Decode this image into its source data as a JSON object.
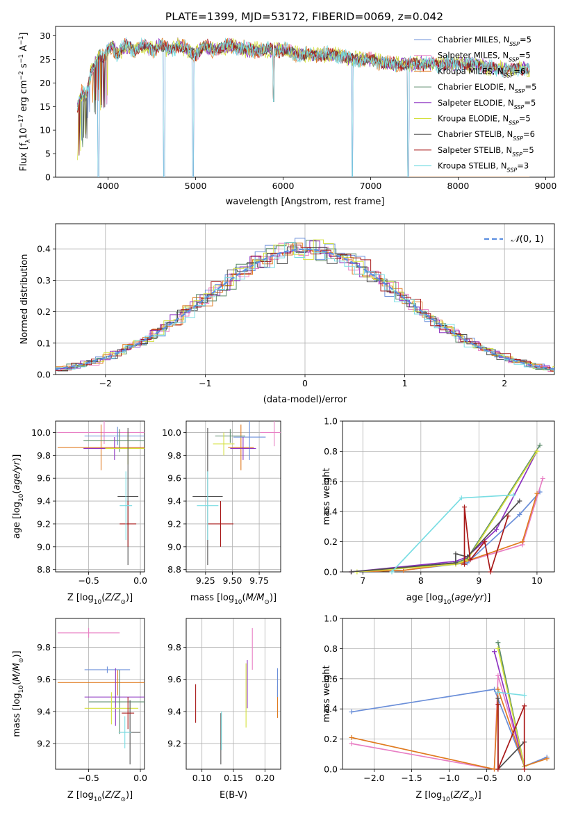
{
  "figure_title": "PLATE=1399, MJD=53172, FIBERID=0069, z=0.042",
  "models": [
    {
      "name": "Chabrier MILES",
      "nssp": "5",
      "color": "#6b8fd9"
    },
    {
      "name": "Salpeter MILES",
      "nssp": "5",
      "color": "#e87fc4"
    },
    {
      "name": "Kroupa MILES",
      "nssp": "6",
      "color": "#e07b20"
    },
    {
      "name": "Chabrier ELODIE",
      "nssp": "5",
      "color": "#5a8a6a"
    },
    {
      "name": "Salpeter ELODIE",
      "nssp": "5",
      "color": "#8e34c2"
    },
    {
      "name": "Kroupa ELODIE",
      "nssp": "5",
      "color": "#d4e03c"
    },
    {
      "name": "Chabrier STELIB",
      "nssp": "6",
      "color": "#505050"
    },
    {
      "name": "Salpeter STELIB",
      "nssp": "5",
      "color": "#a81818"
    },
    {
      "name": "Kroupa STELIB",
      "nssp": "3",
      "color": "#79dde3"
    }
  ],
  "chart_data": [
    {
      "id": "spectrum",
      "type": "line",
      "xlabel": "wavelength [Angstrom, rest frame]",
      "ylabel_prefix": "Flux [f",
      "xlim": [
        3400,
        9100
      ],
      "ylim": [
        0,
        32
      ],
      "xticks": [
        4000,
        5000,
        6000,
        7000,
        8000,
        9000
      ],
      "yticks": [
        0,
        5,
        10,
        15,
        20,
        25,
        30
      ],
      "legend": "right",
      "points": [
        [
          3650,
          15
        ],
        [
          3700,
          18
        ],
        [
          3750,
          17
        ],
        [
          3800,
          22
        ],
        [
          3850,
          24
        ],
        [
          3900,
          26
        ],
        [
          3950,
          25
        ],
        [
          4000,
          27
        ],
        [
          4050,
          28
        ],
        [
          4100,
          26
        ],
        [
          4200,
          28
        ],
        [
          4300,
          27
        ],
        [
          4400,
          28
        ],
        [
          4500,
          27
        ],
        [
          4600,
          28
        ],
        [
          4700,
          27
        ],
        [
          4800,
          28
        ],
        [
          4900,
          27
        ],
        [
          5000,
          26
        ],
        [
          5100,
          28
        ],
        [
          5200,
          27
        ],
        [
          5400,
          28
        ],
        [
          5600,
          27
        ],
        [
          5800,
          27
        ],
        [
          6000,
          27
        ],
        [
          6200,
          26
        ],
        [
          6400,
          26
        ],
        [
          6600,
          26
        ],
        [
          6800,
          25
        ],
        [
          7000,
          25
        ],
        [
          7200,
          24
        ],
        [
          7400,
          24
        ],
        [
          7600,
          24
        ],
        [
          7800,
          24
        ],
        [
          8000,
          24
        ],
        [
          8200,
          24
        ],
        [
          8400,
          23
        ],
        [
          8600,
          23
        ],
        [
          8800,
          23
        ]
      ],
      "dips": [
        [
          3890,
          0
        ],
        [
          4640,
          0
        ],
        [
          4970,
          0
        ],
        [
          5890,
          16
        ],
        [
          6790,
          0
        ],
        [
          7430,
          0
        ]
      ]
    },
    {
      "id": "residuals",
      "type": "histogram",
      "xlabel": "(data-model)/error",
      "ylabel": "Normed distribution",
      "xlim": [
        -2.5,
        2.5
      ],
      "ylim": [
        0,
        0.48
      ],
      "xticks": [
        -2,
        -1,
        0,
        1,
        2
      ],
      "yticks": [
        0.0,
        0.1,
        0.2,
        0.3,
        0.4
      ],
      "legend_label": "N(0,1)",
      "legend": "top-right"
    },
    {
      "id": "age_vs_Z",
      "type": "errorbar",
      "xlabel": "Z [log10(Z/Z⊙)]",
      "ylabel": "age [log10(age/yr)]",
      "xlim": [
        -0.82,
        0.04
      ],
      "ylim": [
        8.78,
        10.1
      ],
      "xticks": [
        -0.5,
        -0.0
      ],
      "xticklabels": [
        "−0.5",
        "0.0"
      ],
      "yticks": [
        8.8,
        9.0,
        9.2,
        9.4,
        9.6,
        9.8,
        10.0
      ],
      "points": [
        {
          "x": -0.35,
          "y": 10.0,
          "xerr": 0.45,
          "yerr": 0.1,
          "model": 1
        },
        {
          "x": -0.38,
          "y": 9.87,
          "xerr": 0.42,
          "yerr": 0.2,
          "model": 2
        },
        {
          "x": -0.22,
          "y": 9.97,
          "xerr": 0.32,
          "yerr": 0.08,
          "model": 0
        },
        {
          "x": -0.2,
          "y": 9.93,
          "xerr": 0.35,
          "yerr": 0.1,
          "model": 3
        },
        {
          "x": -0.25,
          "y": 9.86,
          "xerr": 0.3,
          "yerr": 0.1,
          "model": 4
        },
        {
          "x": -0.12,
          "y": 9.86,
          "xerr": 0.22,
          "yerr": 0.14,
          "model": 5
        },
        {
          "x": -0.12,
          "y": 9.44,
          "xerr": 0.1,
          "yerr": 0.6,
          "model": 6
        },
        {
          "x": -0.12,
          "y": 9.2,
          "xerr": 0.08,
          "yerr": 0.2,
          "model": 7
        },
        {
          "x": -0.14,
          "y": 9.36,
          "xerr": 0.06,
          "yerr": 0.3,
          "model": 8
        }
      ]
    },
    {
      "id": "age_vs_mass",
      "type": "errorbar",
      "xlabel": "mass [log10(M/M⊙)]",
      "ylabel": "",
      "xlim": [
        9.07,
        9.95
      ],
      "ylim": [
        8.78,
        10.1
      ],
      "xticks": [
        9.25,
        9.5,
        9.75
      ],
      "xticklabels": [
        "9.25",
        "9.50",
        "9.75"
      ],
      "yticks": [
        8.8,
        9.0,
        9.2,
        9.4,
        9.6,
        9.8,
        10.0
      ],
      "points": [
        {
          "x": 9.89,
          "y": 10.0,
          "xerr": 0.13,
          "yerr": 0.12,
          "model": 1
        },
        {
          "x": 9.58,
          "y": 9.87,
          "xerr": 0.12,
          "yerr": 0.2,
          "model": 2
        },
        {
          "x": 9.66,
          "y": 9.96,
          "xerr": 0.15,
          "yerr": 0.2,
          "model": 0
        },
        {
          "x": 9.48,
          "y": 9.97,
          "xerr": 0.14,
          "yerr": 0.06,
          "model": 3
        },
        {
          "x": 9.6,
          "y": 9.86,
          "xerr": 0.12,
          "yerr": 0.1,
          "model": 4
        },
        {
          "x": 9.42,
          "y": 9.9,
          "xerr": 0.1,
          "yerr": 0.1,
          "model": 5
        },
        {
          "x": 9.27,
          "y": 9.44,
          "xerr": 0.14,
          "yerr": 0.6,
          "model": 6
        },
        {
          "x": 9.39,
          "y": 9.2,
          "xerr": 0.12,
          "yerr": 0.2,
          "model": 7
        },
        {
          "x": 9.27,
          "y": 9.36,
          "xerr": 0.1,
          "yerr": 0.3,
          "model": 8
        }
      ]
    },
    {
      "id": "weight_vs_age",
      "type": "line",
      "xlabel": "age [log10(age/yr)]",
      "ylabel": "mass weight",
      "xlim": [
        6.65,
        10.3
      ],
      "ylim": [
        0,
        1.0
      ],
      "xticks": [
        7,
        8,
        9,
        10
      ],
      "yticks": [
        0.0,
        0.2,
        0.4,
        0.6,
        0.8,
        1.0
      ],
      "series": [
        {
          "model": 0,
          "points": [
            [
              6.8,
              0.0
            ],
            [
              7.7,
              0.01
            ],
            [
              8.8,
              0.06
            ],
            [
              9.7,
              0.38
            ],
            [
              10.05,
              0.53
            ]
          ]
        },
        {
          "model": 1,
          "points": [
            [
              6.8,
              0.0
            ],
            [
              7.7,
              0.01
            ],
            [
              8.7,
              0.06
            ],
            [
              9.75,
              0.18
            ],
            [
              10.1,
              0.62
            ]
          ]
        },
        {
          "model": 2,
          "points": [
            [
              6.8,
              0.0
            ],
            [
              7.7,
              0.01
            ],
            [
              8.7,
              0.06
            ],
            [
              9.75,
              0.2
            ],
            [
              10.0,
              0.52
            ]
          ]
        },
        {
          "model": 3,
          "points": [
            [
              6.8,
              0.0
            ],
            [
              8.6,
              0.06
            ],
            [
              8.8,
              0.09
            ],
            [
              10.05,
              0.84
            ]
          ]
        },
        {
          "model": 4,
          "points": [
            [
              6.8,
              0.0
            ],
            [
              8.6,
              0.07
            ],
            [
              8.8,
              0.1
            ],
            [
              9.3,
              0.28
            ],
            [
              10.0,
              0.8
            ]
          ]
        },
        {
          "model": 5,
          "points": [
            [
              6.9,
              0.0
            ],
            [
              8.6,
              0.05
            ],
            [
              8.8,
              0.08
            ],
            [
              10.0,
              0.8
            ]
          ]
        },
        {
          "model": 6,
          "points": [
            [
              6.8,
              0.0
            ],
            [
              8.6,
              0.06
            ],
            [
              8.6,
              0.12
            ],
            [
              8.8,
              0.1
            ],
            [
              9.7,
              0.47
            ]
          ]
        },
        {
          "model": 7,
          "points": [
            [
              8.75,
              0.05
            ],
            [
              8.75,
              0.43
            ],
            [
              8.85,
              0.08
            ],
            [
              9.1,
              0.2
            ],
            [
              9.2,
              0.0
            ],
            [
              9.5,
              0.37
            ]
          ]
        },
        {
          "model": 8,
          "points": [
            [
              7.5,
              0.0
            ],
            [
              8.7,
              0.49
            ],
            [
              9.6,
              0.51
            ]
          ]
        }
      ]
    },
    {
      "id": "mass_vs_Z",
      "type": "errorbar",
      "xlabel": "Z [log10(Z/Z⊙)]",
      "ylabel": "mass [log10(M/M⊙)]",
      "xlim": [
        -0.82,
        0.04
      ],
      "ylim": [
        9.04,
        9.98
      ],
      "xticks": [
        -0.5,
        -0.0
      ],
      "xticklabels": [
        "−0.5",
        "0.0"
      ],
      "yticks": [
        9.2,
        9.4,
        9.6,
        9.8
      ],
      "points": [
        {
          "x": -0.5,
          "y": 9.89,
          "xerr": 0.3,
          "yerr": 0.03,
          "model": 1
        },
        {
          "x": -0.22,
          "y": 9.58,
          "xerr": 0.58,
          "yerr": 0.08,
          "model": 2
        },
        {
          "x": -0.32,
          "y": 9.66,
          "xerr": 0.22,
          "yerr": 0.02,
          "model": 0
        },
        {
          "x": -0.2,
          "y": 9.46,
          "xerr": 0.3,
          "yerr": 0.2,
          "model": 3
        },
        {
          "x": -0.24,
          "y": 9.49,
          "xerr": 0.3,
          "yerr": 0.18,
          "model": 4
        },
        {
          "x": -0.28,
          "y": 9.42,
          "xerr": 0.26,
          "yerr": 0.1,
          "model": 5
        },
        {
          "x": -0.1,
          "y": 9.27,
          "xerr": 0.1,
          "yerr": 0.2,
          "model": 6
        },
        {
          "x": -0.12,
          "y": 9.39,
          "xerr": 0.06,
          "yerr": 0.1,
          "model": 7
        },
        {
          "x": -0.15,
          "y": 9.27,
          "xerr": 0.06,
          "yerr": 0.1,
          "model": 8
        }
      ]
    },
    {
      "id": "mass_vs_ebv",
      "type": "errorbar",
      "xlabel": "E(B-V)",
      "ylabel": "",
      "xlim": [
        0.075,
        0.225
      ],
      "ylim": [
        9.04,
        9.98
      ],
      "xticks": [
        0.1,
        0.15,
        0.2
      ],
      "xticklabels": [
        "0.10",
        "0.15",
        "0.20"
      ],
      "yticks": [
        9.2,
        9.4,
        9.6,
        9.8
      ],
      "points": [
        {
          "x": 0.18,
          "y": 9.79,
          "xerr": 0.0,
          "yerr": 0.13,
          "model": 1
        },
        {
          "x": 0.22,
          "y": 9.46,
          "xerr": 0.0,
          "yerr": 0.1,
          "model": 2
        },
        {
          "x": 0.22,
          "y": 9.58,
          "xerr": 0.0,
          "yerr": 0.09,
          "model": 0
        },
        {
          "x": 0.172,
          "y": 9.57,
          "xerr": 0.0,
          "yerr": 0.15,
          "model": 4
        },
        {
          "x": 0.17,
          "y": 9.5,
          "xerr": 0.0,
          "yerr": 0.2,
          "model": 5
        },
        {
          "x": 0.13,
          "y": 9.23,
          "xerr": 0.0,
          "yerr": 0.16,
          "model": 6
        },
        {
          "x": 0.09,
          "y": 9.45,
          "xerr": 0.0,
          "yerr": 0.12,
          "model": 7
        },
        {
          "x": 0.131,
          "y": 9.28,
          "xerr": 0.0,
          "yerr": 0.12,
          "model": 8
        }
      ]
    },
    {
      "id": "weight_vs_Z",
      "type": "line",
      "xlabel": "Z [log10(Z/Z⊙)]",
      "ylabel": "mass weight",
      "xlim": [
        -2.42,
        0.4
      ],
      "ylim": [
        0,
        1.0
      ],
      "xticks": [
        -2.0,
        -1.5,
        -1.0,
        -0.5,
        0.0
      ],
      "xticklabels": [
        "−2.0",
        "−1.5",
        "−1.0",
        "−0.5",
        "0.0"
      ],
      "yticks": [
        0.0,
        0.2,
        0.4,
        0.6,
        0.8,
        1.0
      ],
      "series": [
        {
          "model": 0,
          "points": [
            [
              -2.3,
              0.38
            ],
            [
              -0.4,
              0.53
            ],
            [
              0.0,
              0.02
            ],
            [
              0.3,
              0.08
            ]
          ]
        },
        {
          "model": 1,
          "points": [
            [
              -2.3,
              0.17
            ],
            [
              -0.4,
              0.0
            ],
            [
              -0.35,
              0.62
            ],
            [
              0.0,
              0.02
            ]
          ]
        },
        {
          "model": 2,
          "points": [
            [
              -2.3,
              0.21
            ],
            [
              -0.4,
              0.0
            ],
            [
              -0.35,
              0.53
            ],
            [
              0.0,
              0.02
            ],
            [
              0.3,
              0.07
            ]
          ]
        },
        {
          "model": 3,
          "points": [
            [
              -0.35,
              0.84
            ],
            [
              0.0,
              0.02
            ]
          ]
        },
        {
          "model": 4,
          "points": [
            [
              -0.4,
              0.78
            ],
            [
              0.0,
              0.02
            ]
          ]
        },
        {
          "model": 5,
          "points": [
            [
              -0.35,
              0.8
            ],
            [
              0.0,
              0.02
            ]
          ]
        },
        {
          "model": 6,
          "points": [
            [
              -0.35,
              0.47
            ],
            [
              -0.35,
              0.0
            ],
            [
              0.0,
              0.18
            ]
          ]
        },
        {
          "model": 7,
          "points": [
            [
              -0.35,
              0.43
            ],
            [
              -0.35,
              0.0
            ],
            [
              0.0,
              0.42
            ],
            [
              0.0,
              0.0
            ]
          ]
        },
        {
          "model": 8,
          "points": [
            [
              -0.35,
              0.51
            ],
            [
              0.0,
              0.49
            ]
          ]
        }
      ]
    }
  ]
}
